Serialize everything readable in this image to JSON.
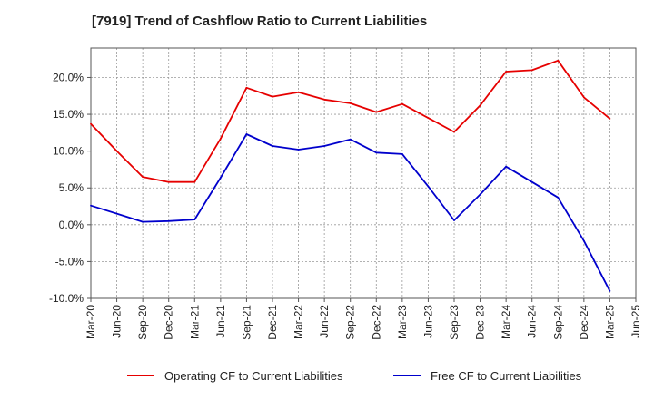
{
  "chart_data": {
    "type": "line",
    "title": "[7919]  Trend of Cashflow Ratio to Current Liabilities",
    "xlabel": "",
    "ylabel": "",
    "categories": [
      "Mar-20",
      "Jun-20",
      "Sep-20",
      "Dec-20",
      "Mar-21",
      "Jun-21",
      "Sep-21",
      "Dec-21",
      "Mar-22",
      "Jun-22",
      "Sep-22",
      "Dec-22",
      "Mar-23",
      "Jun-23",
      "Sep-23",
      "Dec-23",
      "Mar-24",
      "Jun-24",
      "Sep-24",
      "Dec-24",
      "Mar-25",
      "Jun-25"
    ],
    "yticks": [
      "20.0%",
      "15.0%",
      "10.0%",
      "5.0%",
      "0.0%",
      "-5.0%",
      "-10.0%"
    ],
    "ylim": [
      -10,
      24
    ],
    "grid": true,
    "legend_position": "bottom",
    "series": [
      {
        "name": "Operating CF to Current Liabilities",
        "color": "#e60000",
        "values": [
          13.7,
          10.0,
          6.5,
          5.8,
          5.8,
          11.7,
          18.6,
          17.4,
          18.0,
          17.0,
          16.5,
          15.3,
          16.4,
          14.5,
          12.6,
          16.2,
          20.8,
          21.0,
          22.3,
          17.3,
          14.4,
          null
        ]
      },
      {
        "name": "Free CF to Current Liabilities",
        "color": "#0000cc",
        "values": [
          2.6,
          1.5,
          0.4,
          0.5,
          0.7,
          6.4,
          12.3,
          10.7,
          10.2,
          10.7,
          11.6,
          9.8,
          9.6,
          5.2,
          0.6,
          4.1,
          7.9,
          5.8,
          3.7,
          -2.2,
          -9.0,
          null
        ]
      }
    ]
  }
}
